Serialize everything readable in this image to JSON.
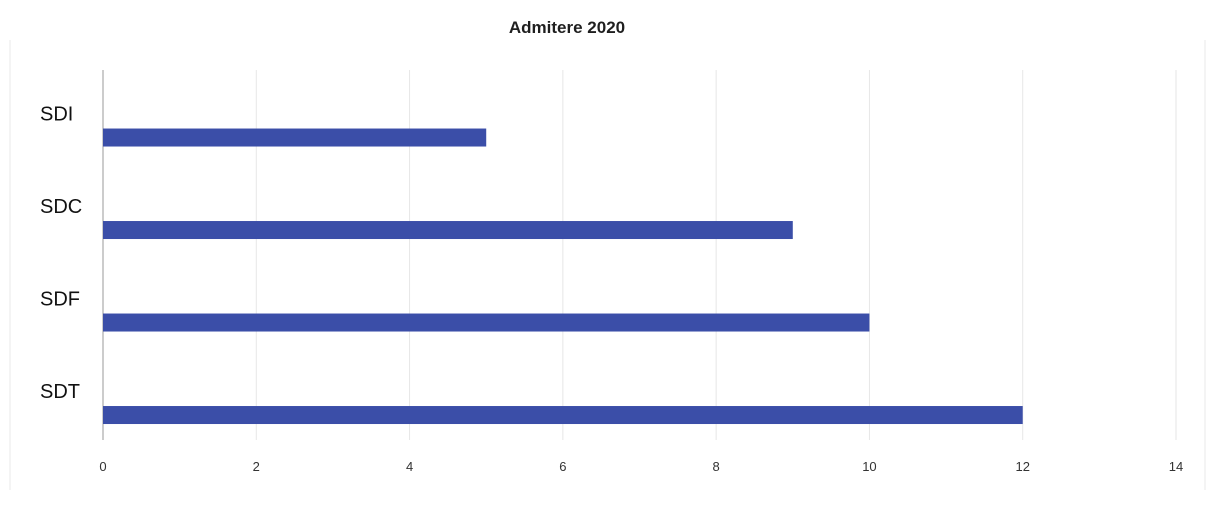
{
  "chart_data": {
    "type": "bar",
    "orientation": "horizontal",
    "title": "Admitere 2020",
    "categories": [
      "SDI",
      "SDC",
      "SDF",
      "SDT"
    ],
    "values": [
      5,
      9,
      10,
      12
    ],
    "xlim": [
      0,
      14
    ],
    "x_ticks": [
      "0",
      "2",
      "4",
      "6",
      "8",
      "10",
      "12",
      "14"
    ],
    "grid": true,
    "legend": "none",
    "bar_color": "#3b4ea8"
  }
}
